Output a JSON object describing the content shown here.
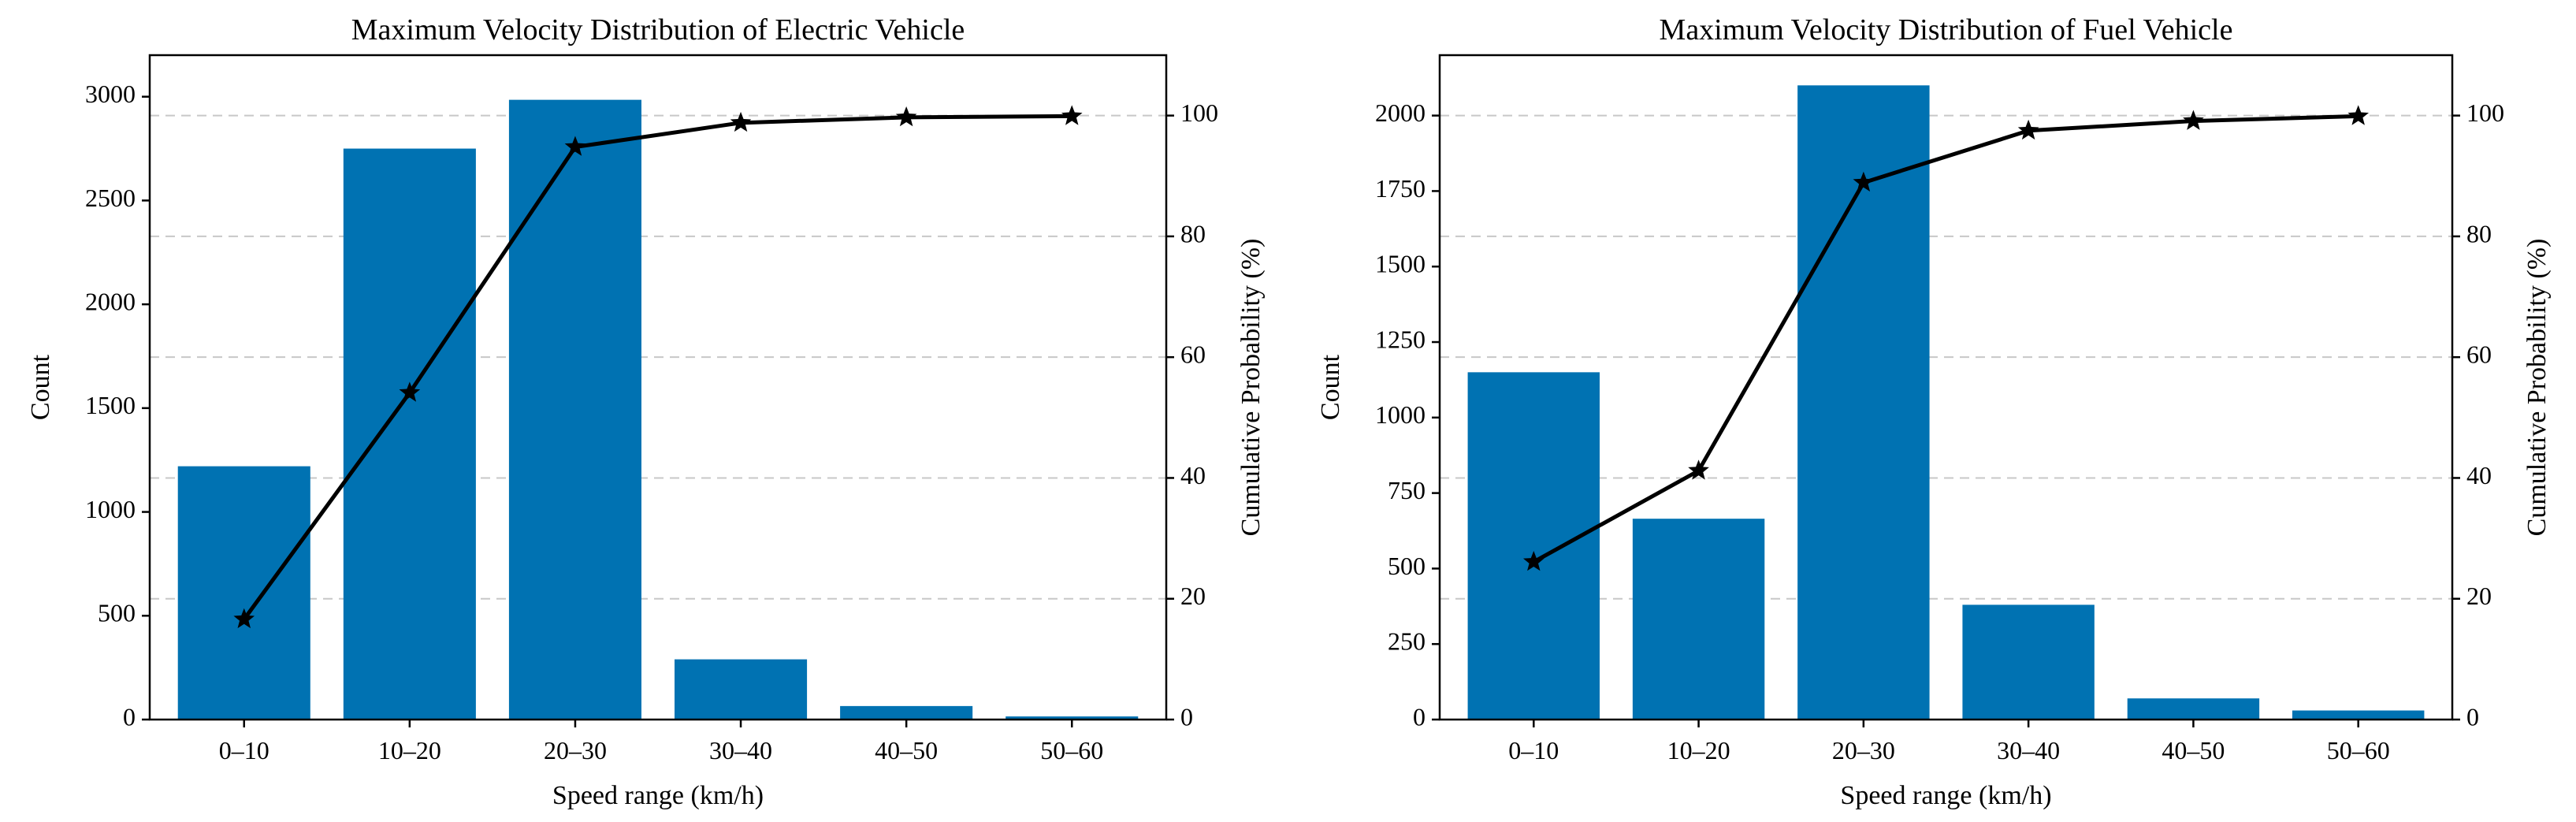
{
  "chart_data": [
    {
      "type": "bar",
      "title": "Maximum Velocity Distribution of Electric Vehicle",
      "xlabel": "Speed range (km/h)",
      "ylabel": "Count",
      "y2label": "Cumulative Probability (%)",
      "categories": [
        "0–10",
        "10–20",
        "20–30",
        "30–40",
        "40–50",
        "50–60"
      ],
      "series": [
        {
          "name": "Count",
          "axis": "left",
          "type": "bar",
          "color": "#0072b2",
          "values": [
            1220,
            2750,
            2985,
            290,
            65,
            15
          ]
        },
        {
          "name": "Cumulative Probability (%)",
          "axis": "right",
          "type": "line",
          "marker": "star",
          "color": "#000000",
          "values": [
            16.6,
            54.1,
            94.8,
            98.8,
            99.7,
            99.9
          ]
        }
      ],
      "ylim": [
        0,
        3200
      ],
      "yticks": [
        0,
        500,
        1000,
        1500,
        2000,
        2500,
        3000
      ],
      "y2lim": [
        0,
        110
      ],
      "y2ticks": [
        0,
        20,
        40,
        60,
        80,
        100
      ],
      "grid": "right-axis, dashed"
    },
    {
      "type": "bar",
      "title": "Maximum Velocity Distribution of Fuel Vehicle",
      "xlabel": "Speed range (km/h)",
      "ylabel": "Count",
      "y2label": "Cumulative Probability (%)",
      "categories": [
        "0–10",
        "10–20",
        "20–30",
        "30–40",
        "40–50",
        "50–60"
      ],
      "series": [
        {
          "name": "Count",
          "axis": "left",
          "type": "bar",
          "color": "#0072b2",
          "values": [
            1150,
            665,
            2100,
            380,
            70,
            30
          ]
        },
        {
          "name": "Cumulative Probability (%)",
          "axis": "right",
          "type": "line",
          "marker": "star",
          "color": "#000000",
          "values": [
            26.1,
            41.2,
            88.9,
            97.5,
            99.1,
            99.9
          ]
        }
      ],
      "ylim": [
        0,
        2200
      ],
      "yticks": [
        0,
        250,
        500,
        750,
        1000,
        1250,
        1500,
        1750,
        2000
      ],
      "y2lim": [
        0,
        110
      ],
      "y2ticks": [
        0,
        20,
        40,
        60,
        80,
        100
      ],
      "grid": "right-axis, dashed"
    }
  ]
}
